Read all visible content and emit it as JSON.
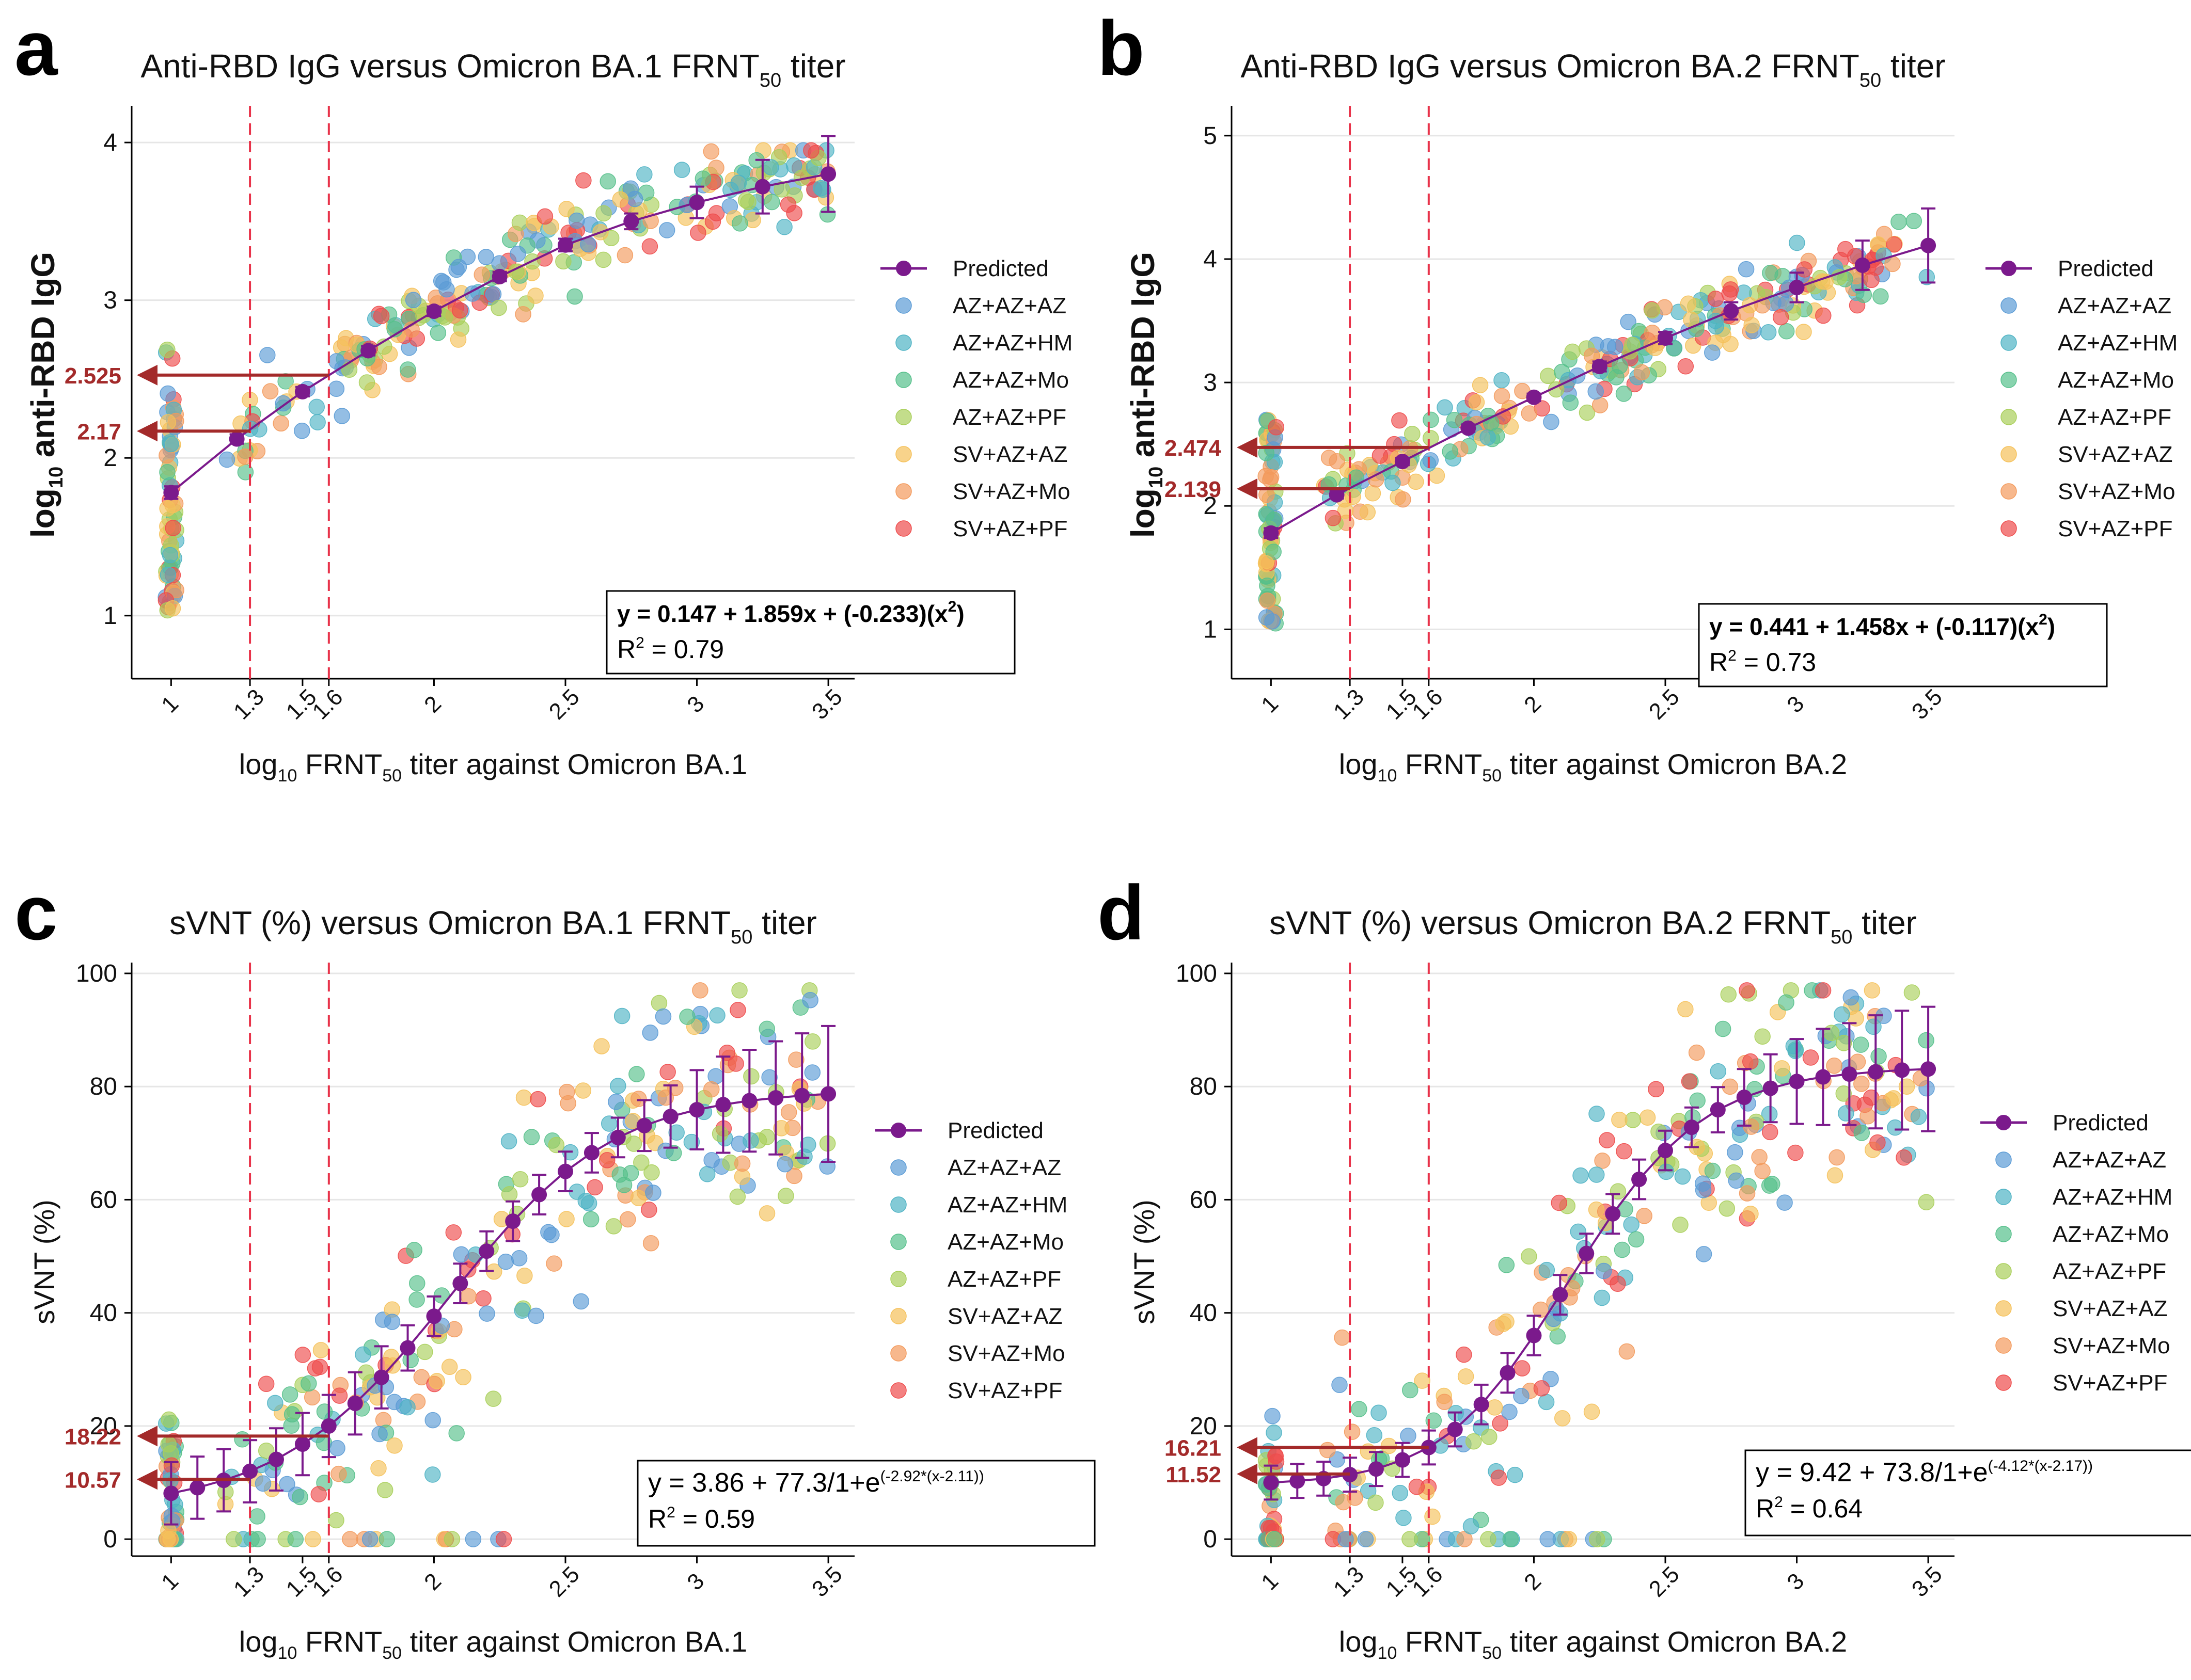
{
  "legend_colors": {
    "Predicted": "#7b1a8c",
    "AZ+AZ+AZ": "#5b9bd5",
    "AZ+AZ+HM": "#4fb3c4",
    "AZ+AZ+Mo": "#56c08b",
    "AZ+AZ+PF": "#a9cf5a",
    "SV+AZ+AZ": "#f5c15a",
    "SV+AZ+Mo": "#f39a5c",
    "SV+AZ+PF": "#ee4b4b"
  },
  "colors": {
    "ref_line": "#e8334a",
    "arrow": "#a32a2a",
    "predicted": "#7b1a8c",
    "axis": "#000000",
    "grid": "#e6e6e6"
  },
  "chart_data": [
    {
      "panel": "a",
      "type": "scatter",
      "title_main": "Anti-RBD IgG versus Omicron BA.1 FRNT",
      "title_sub": "50",
      "title_tail": " titer",
      "xlabel_pre": "log",
      "xlabel_sub": "10",
      "xlabel_mid": " FRNT",
      "xlabel_sub2": "50",
      "xlabel_post": " titer against Omicron BA.1",
      "ylabel_pre": "log",
      "ylabel_sub": "10",
      "ylabel_post": " anti-RBD IgG",
      "xlim": [
        0.85,
        3.6
      ],
      "ylim": [
        0.6,
        4.2
      ],
      "xticks": [
        1,
        1.3,
        1.5,
        1.6,
        2,
        2.5,
        3,
        3.5
      ],
      "xtick_labels": [
        "1",
        "1.3",
        "1.5",
        "1.6",
        "2",
        "2.5",
        "3",
        "3.5"
      ],
      "yticks": [
        1,
        2,
        3,
        4
      ],
      "ytick_labels": [
        "1",
        "2",
        "3",
        "4"
      ],
      "ref_lines_x": [
        1.3,
        1.6
      ],
      "arrows": [
        {
          "y": 2.525,
          "label": "2.525",
          "x_to": 1.6
        },
        {
          "y": 2.17,
          "label": "2.17",
          "x_to": 1.3
        }
      ],
      "predicted": {
        "x": [
          1,
          1.25,
          1.5,
          1.75,
          2,
          2.25,
          2.5,
          2.75,
          3,
          3.25,
          3.5
        ],
        "y": [
          1.78,
          2.12,
          2.42,
          2.68,
          2.93,
          3.15,
          3.35,
          3.5,
          3.62,
          3.72,
          3.8
        ],
        "err": [
          0.04,
          0.03,
          0.03,
          0.03,
          0.03,
          0.03,
          0.04,
          0.05,
          0.1,
          0.17,
          0.24
        ]
      },
      "equation": "y = 0.147 + 1.859x + (-0.233)(x",
      "equation_sup": "2",
      "equation_tail": ")",
      "r2_label": "R",
      "r2_sup": "2",
      "r2_value": " = 0.79",
      "legend": [
        "Predicted",
        "AZ+AZ+AZ",
        "AZ+AZ+HM",
        "AZ+AZ+Mo",
        "AZ+AZ+PF",
        "SV+AZ+AZ",
        "SV+AZ+Mo",
        "SV+AZ+PF"
      ],
      "model": "quad",
      "params": [
        0.147,
        1.859,
        -0.233
      ],
      "spread": 0.28,
      "seed": 11
    },
    {
      "panel": "b",
      "type": "scatter",
      "title_main": "Anti-RBD IgG versus Omicron BA.2 FRNT",
      "title_sub": "50",
      "title_tail": " titer",
      "xlabel_pre": "log",
      "xlabel_sub": "10",
      "xlabel_mid": " FRNT",
      "xlabel_sub2": "50",
      "xlabel_post": " titer against Omicron BA.2",
      "ylabel_pre": "log",
      "ylabel_sub": "10",
      "ylabel_post": " anti-RBD IgG",
      "xlim": [
        0.85,
        3.6
      ],
      "ylim": [
        0.6,
        5.2
      ],
      "xticks": [
        1,
        1.3,
        1.5,
        1.6,
        2,
        2.5,
        3,
        3.5
      ],
      "xtick_labels": [
        "1",
        "1.3",
        "1.5",
        "1.6",
        "2",
        "2.5",
        "3",
        "3.5"
      ],
      "yticks": [
        1,
        2,
        3,
        4,
        5
      ],
      "ytick_labels": [
        "1",
        "2",
        "3",
        "4",
        "5"
      ],
      "ref_lines_x": [
        1.3,
        1.6
      ],
      "arrows": [
        {
          "y": 2.474,
          "label": "2.474",
          "x_to": 1.6
        },
        {
          "y": 2.139,
          "label": "2.139",
          "x_to": 1.3
        }
      ],
      "predicted": {
        "x": [
          1,
          1.25,
          1.5,
          1.75,
          2,
          2.25,
          2.5,
          2.75,
          3,
          3.25,
          3.5
        ],
        "y": [
          1.78,
          2.09,
          2.36,
          2.63,
          2.88,
          3.13,
          3.36,
          3.58,
          3.77,
          3.95,
          4.11
        ],
        "err": [
          0.04,
          0.03,
          0.03,
          0.03,
          0.03,
          0.04,
          0.05,
          0.07,
          0.12,
          0.2,
          0.3
        ]
      },
      "equation": "y = 0.441 + 1.458x + (-0.117)(x",
      "equation_sup": "2",
      "equation_tail": ")",
      "r2_label": "R",
      "r2_sup": "2",
      "r2_value": " = 0.73",
      "legend": [
        "Predicted",
        "AZ+AZ+AZ",
        "AZ+AZ+HM",
        "AZ+AZ+Mo",
        "AZ+AZ+PF",
        "SV+AZ+AZ",
        "SV+AZ+Mo",
        "SV+AZ+PF"
      ],
      "model": "quad",
      "params": [
        0.441,
        1.458,
        -0.117
      ],
      "spread": 0.3,
      "seed": 23
    },
    {
      "panel": "c",
      "type": "scatter",
      "title_main": "sVNT (%) versus Omicron BA.1 FRNT",
      "title_sub": "50",
      "title_tail": " titer",
      "xlabel_pre": "log",
      "xlabel_sub": "10",
      "xlabel_mid": " FRNT",
      "xlabel_sub2": "50",
      "xlabel_post": " titer against Omicron BA.1",
      "ylabel_pre": "",
      "ylabel_sub": "",
      "ylabel_post": "sVNT (%)",
      "xlim": [
        0.85,
        3.6
      ],
      "ylim": [
        -3,
        101
      ],
      "xticks": [
        1,
        1.3,
        1.5,
        1.6,
        2,
        2.5,
        3,
        3.5
      ],
      "xtick_labels": [
        "1",
        "1.3",
        "1.5",
        "1.6",
        "2",
        "2.5",
        "3",
        "3.5"
      ],
      "yticks": [
        0,
        20,
        40,
        60,
        80,
        100
      ],
      "ytick_labels": [
        "0",
        "20",
        "40",
        "60",
        "80",
        "100"
      ],
      "ref_lines_x": [
        1.3,
        1.6
      ],
      "arrows": [
        {
          "y": 18.22,
          "label": "18.22",
          "x_to": 1.6
        },
        {
          "y": 10.57,
          "label": "10.57",
          "x_to": 1.3
        }
      ],
      "predicted": {
        "x": [
          1,
          1.1,
          1.2,
          1.3,
          1.4,
          1.5,
          1.6,
          1.7,
          1.8,
          1.9,
          2,
          2.1,
          2.2,
          2.3,
          2.4,
          2.5,
          2.6,
          2.7,
          2.8,
          2.9,
          3,
          3.1,
          3.2,
          3.3,
          3.4,
          3.5
        ],
        "y": [
          8.1,
          9.1,
          10.4,
          12.0,
          14.1,
          16.8,
          20.0,
          24.0,
          28.6,
          33.8,
          39.4,
          45.2,
          50.9,
          56.2,
          60.9,
          65.0,
          68.3,
          71.0,
          73.1,
          74.7,
          75.9,
          76.8,
          77.5,
          78.0,
          78.4,
          78.7
        ],
        "err": [
          5.5,
          5.5,
          5.5,
          5.5,
          5.5,
          5.5,
          5.5,
          5.5,
          5.5,
          4.0,
          3.5,
          3.5,
          3.5,
          3.5,
          3.5,
          3.5,
          3.5,
          3.5,
          4.5,
          5.5,
          7.0,
          8.5,
          9.0,
          10.0,
          11.0,
          12.0
        ]
      },
      "equation": "y = 3.86 + 77.3/1+e",
      "equation_sup": "(-2.92*(x-2.11))",
      "equation_tail": "",
      "r2_label": "R",
      "r2_sup": "2",
      "r2_value": " = 0.59",
      "legend": [
        "Predicted",
        "AZ+AZ+AZ",
        "AZ+AZ+HM",
        "AZ+AZ+Mo",
        "AZ+AZ+PF",
        "SV+AZ+AZ",
        "SV+AZ+Mo",
        "SV+AZ+PF"
      ],
      "model": "logit",
      "params": [
        3.86,
        77.3,
        2.92,
        2.11
      ],
      "spread": 20,
      "seed": 37
    },
    {
      "panel": "d",
      "type": "scatter",
      "title_main": "sVNT (%) versus Omicron BA.2 FRNT",
      "title_sub": "50",
      "title_tail": " titer",
      "xlabel_pre": "log",
      "xlabel_sub": "10",
      "xlabel_mid": " FRNT",
      "xlabel_sub2": "50",
      "xlabel_post": " titer against Omicron BA.2",
      "ylabel_pre": "",
      "ylabel_sub": "",
      "ylabel_post": "sVNT (%)",
      "xlim": [
        0.85,
        3.6
      ],
      "ylim": [
        -3,
        101
      ],
      "xticks": [
        1,
        1.3,
        1.5,
        1.6,
        2,
        2.5,
        3,
        3.5
      ],
      "xtick_labels": [
        "1",
        "1.3",
        "1.5",
        "1.6",
        "2",
        "2.5",
        "3",
        "3.5"
      ],
      "yticks": [
        0,
        20,
        40,
        60,
        80,
        100
      ],
      "ytick_labels": [
        "0",
        "20",
        "40",
        "60",
        "80",
        "100"
      ],
      "ref_lines_x": [
        1.3,
        1.6
      ],
      "arrows": [
        {
          "y": 16.21,
          "label": "16.21",
          "x_to": 1.6
        },
        {
          "y": 11.52,
          "label": "11.52",
          "x_to": 1.3
        }
      ],
      "predicted": {
        "x": [
          1,
          1.1,
          1.2,
          1.3,
          1.4,
          1.5,
          1.6,
          1.7,
          1.8,
          1.9,
          2,
          2.1,
          2.2,
          2.3,
          2.4,
          2.5,
          2.6,
          2.7,
          2.8,
          2.9,
          3,
          3.1,
          3.2,
          3.3,
          3.4,
          3.5
        ],
        "y": [
          10.0,
          10.3,
          10.7,
          11.4,
          12.4,
          14.0,
          16.2,
          19.4,
          23.8,
          29.4,
          36.0,
          43.2,
          50.5,
          57.5,
          63.6,
          68.7,
          72.8,
          75.9,
          78.1,
          79.7,
          80.9,
          81.7,
          82.2,
          82.6,
          82.9,
          83.1
        ],
        "err": [
          3.0,
          3.0,
          3.0,
          3.0,
          3.0,
          3.0,
          3.0,
          3.0,
          3.5,
          3.5,
          3.5,
          3.5,
          3.5,
          3.5,
          3.5,
          3.5,
          3.5,
          4.0,
          5.0,
          6.0,
          7.5,
          8.5,
          9.0,
          10.0,
          10.5,
          11.0
        ]
      },
      "equation": "y = 9.42 + 73.8/1+e",
      "equation_sup": "(-4.12*(x-2.17))",
      "equation_tail": "",
      "r2_label": "R",
      "r2_sup": "2",
      "r2_value": " = 0.64",
      "legend": [
        "Predicted",
        "AZ+AZ+AZ",
        "AZ+AZ+HM",
        "AZ+AZ+Mo",
        "AZ+AZ+PF",
        "SV+AZ+AZ",
        "SV+AZ+Mo",
        "SV+AZ+PF"
      ],
      "model": "logit",
      "params": [
        9.42,
        73.8,
        4.12,
        2.17
      ],
      "spread": 22,
      "seed": 53
    }
  ]
}
